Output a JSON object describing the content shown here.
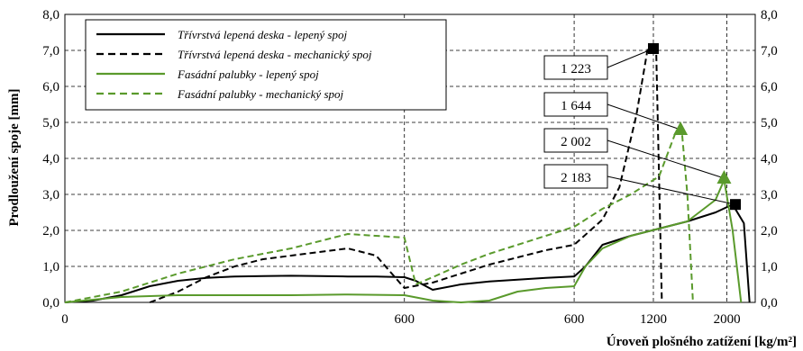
{
  "chart_data": {
    "type": "line",
    "title": "",
    "xlabel": "Úroveň plošného zatížení [kg/m²]",
    "ylabel": "Prodloužení spoje [mm]",
    "ylim": [
      0,
      8
    ],
    "yticks": [
      "0,0",
      "1,0",
      "2,0",
      "3,0",
      "4,0",
      "5,0",
      "6,0",
      "7,0",
      "8,0"
    ],
    "xticks": [
      "0",
      "600",
      "600",
      "1200",
      "2000"
    ],
    "legend": "top-left",
    "grid": true,
    "series": [
      {
        "name": "Třívrstvá lepená deska - lepený spoj",
        "color": "#000000",
        "dash": "solid",
        "points": [
          [
            0,
            0.0
          ],
          [
            50,
            0.05
          ],
          [
            100,
            0.2
          ],
          [
            150,
            0.45
          ],
          [
            200,
            0.6
          ],
          [
            250,
            0.68
          ],
          [
            300,
            0.72
          ],
          [
            350,
            0.73
          ],
          [
            400,
            0.74
          ],
          [
            450,
            0.73
          ],
          [
            500,
            0.72
          ],
          [
            550,
            0.72
          ],
          [
            600,
            0.7
          ],
          [
            620,
            0.6
          ],
          [
            650,
            0.35
          ],
          [
            700,
            0.5
          ],
          [
            750,
            0.58
          ],
          [
            800,
            0.63
          ],
          [
            850,
            0.68
          ],
          [
            900,
            0.72
          ],
          [
            920,
            1.0
          ],
          [
            950,
            1.6
          ],
          [
            1000,
            1.85
          ],
          [
            1050,
            2.05
          ],
          [
            1100,
            2.25
          ],
          [
            1150,
            2.5
          ],
          [
            1180,
            2.72
          ],
          [
            1200,
            2.2
          ],
          [
            1210,
            0.0
          ]
        ]
      },
      {
        "name": "Třívrstvá lepená deska - mechanický spoj",
        "color": "#000000",
        "dash": "dashed",
        "points": [
          [
            150,
            0.0
          ],
          [
            200,
            0.3
          ],
          [
            250,
            0.7
          ],
          [
            300,
            1.0
          ],
          [
            350,
            1.2
          ],
          [
            400,
            1.3
          ],
          [
            450,
            1.4
          ],
          [
            500,
            1.5
          ],
          [
            550,
            1.3
          ],
          [
            600,
            0.4
          ],
          [
            650,
            0.55
          ],
          [
            700,
            0.8
          ],
          [
            750,
            1.05
          ],
          [
            800,
            1.25
          ],
          [
            850,
            1.45
          ],
          [
            900,
            1.6
          ],
          [
            950,
            2.3
          ],
          [
            980,
            3.2
          ],
          [
            1010,
            5.2
          ],
          [
            1030,
            7.05
          ],
          [
            1045,
            7.0
          ],
          [
            1055,
            0.0
          ]
        ]
      },
      {
        "name": "Fasádní palubky - lepený spoj",
        "color": "#5a9a2c",
        "dash": "solid",
        "points": [
          [
            0,
            0.0
          ],
          [
            100,
            0.15
          ],
          [
            200,
            0.2
          ],
          [
            300,
            0.2
          ],
          [
            400,
            0.2
          ],
          [
            500,
            0.22
          ],
          [
            600,
            0.2
          ],
          [
            650,
            0.05
          ],
          [
            700,
            0.0
          ],
          [
            750,
            0.05
          ],
          [
            800,
            0.3
          ],
          [
            850,
            0.4
          ],
          [
            900,
            0.45
          ],
          [
            920,
            1.0
          ],
          [
            950,
            1.5
          ],
          [
            1000,
            1.85
          ],
          [
            1050,
            2.05
          ],
          [
            1100,
            2.25
          ],
          [
            1150,
            2.85
          ],
          [
            1165,
            3.4
          ],
          [
            1180,
            2.0
          ],
          [
            1195,
            0.0
          ]
        ]
      },
      {
        "name": "Fasádní palubky - mechanický spoj",
        "color": "#5a9a2c",
        "dash": "dashed",
        "points": [
          [
            0,
            0.0
          ],
          [
            100,
            0.3
          ],
          [
            200,
            0.8
          ],
          [
            300,
            1.2
          ],
          [
            400,
            1.5
          ],
          [
            500,
            1.9
          ],
          [
            600,
            1.8
          ],
          [
            620,
            0.5
          ],
          [
            650,
            0.7
          ],
          [
            700,
            1.05
          ],
          [
            750,
            1.35
          ],
          [
            800,
            1.6
          ],
          [
            850,
            1.85
          ],
          [
            900,
            2.1
          ],
          [
            950,
            2.6
          ],
          [
            1000,
            3.0
          ],
          [
            1050,
            3.5
          ],
          [
            1080,
            4.75
          ],
          [
            1090,
            4.8
          ],
          [
            1100,
            3.0
          ],
          [
            1110,
            0.0
          ]
        ]
      }
    ],
    "annotations": [
      {
        "text": "1 223",
        "series": "Třívrstvá lepená deska - mechanický spoj",
        "x": 1040,
        "y": 7.05,
        "marker": "square",
        "marker_color": "#000000"
      },
      {
        "text": "1 644",
        "series": "Fasádní palubky - mechanický spoj",
        "x": 1088,
        "y": 4.8,
        "marker": "triangle",
        "marker_color": "#5a9a2c"
      },
      {
        "text": "2 002",
        "series": "Fasádní palubky - lepený spoj",
        "x": 1165,
        "y": 3.45,
        "marker": "triangle",
        "marker_color": "#5a9a2c"
      },
      {
        "text": "2 183",
        "series": "Třívrstvá lepená deska - lepený spoj",
        "x": 1185,
        "y": 2.72,
        "marker": "square",
        "marker_color": "#000000"
      }
    ]
  }
}
